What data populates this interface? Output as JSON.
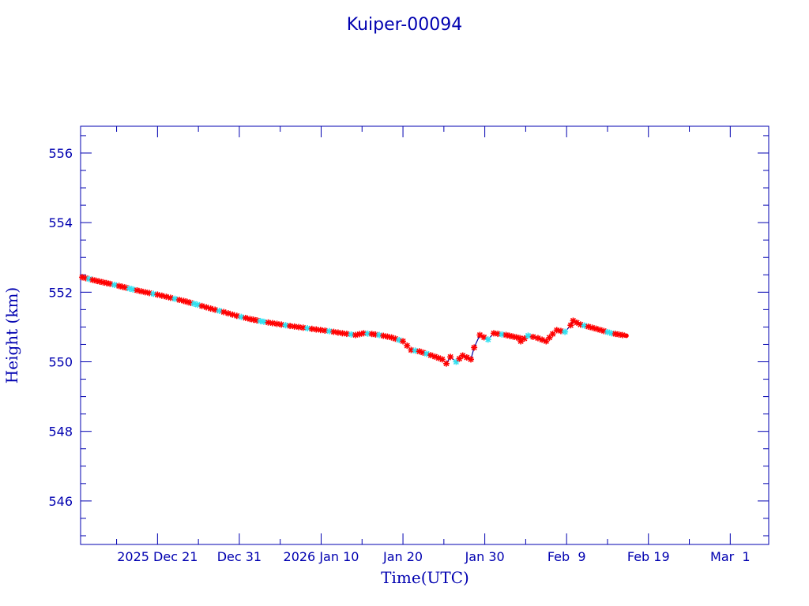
{
  "chart_data": {
    "type": "scatter",
    "title": "Kuiper-00094",
    "xlabel": "Time(UTC)",
    "ylabel": "Height (km)",
    "x_units": "days since 2025 Dec 21 00:00 UTC",
    "xlim": [
      -9.4,
      74.7
    ],
    "ylim": [
      544.75,
      556.77
    ],
    "yticks": [
      546,
      548,
      550,
      552,
      554,
      556
    ],
    "xticks": [
      {
        "day": 0,
        "label": "2025 Dec 21"
      },
      {
        "day": 10,
        "label": "Dec 31"
      },
      {
        "day": 20,
        "label": "2026 Jan 10"
      },
      {
        "day": 30,
        "label": "Jan 20"
      },
      {
        "day": 40,
        "label": "Jan 30"
      },
      {
        "day": 50,
        "label": "Feb  9"
      },
      {
        "day": 60,
        "label": "Feb 19"
      },
      {
        "day": 70,
        "label": "Mar  1"
      }
    ],
    "colors": {
      "axis": "#0000b0",
      "line": "#0000a0",
      "marker_main": "#ff0000",
      "marker_alt": "#33e0f0"
    },
    "series": [
      {
        "name": "Height",
        "points": [
          [
            -9.2,
            552.43
          ],
          [
            -7.5,
            552.33
          ],
          [
            -5.8,
            552.24
          ],
          [
            -4.7,
            552.18
          ],
          [
            -3.0,
            552.08
          ],
          [
            -1.5,
            552.0
          ],
          [
            0.0,
            551.93
          ],
          [
            1.6,
            551.84
          ],
          [
            3.2,
            551.75
          ],
          [
            4.9,
            551.64
          ],
          [
            6.5,
            551.53
          ],
          [
            8.1,
            551.43
          ],
          [
            9.7,
            551.32
          ],
          [
            11.3,
            551.23
          ],
          [
            13.0,
            551.15
          ],
          [
            14.6,
            551.09
          ],
          [
            16.2,
            551.03
          ],
          [
            17.8,
            550.98
          ],
          [
            19.4,
            550.93
          ],
          [
            21.0,
            550.88
          ],
          [
            22.6,
            550.82
          ],
          [
            24.2,
            550.77
          ],
          [
            25.2,
            550.82
          ],
          [
            26.2,
            550.8
          ],
          [
            27.1,
            550.77
          ],
          [
            28.6,
            550.7
          ],
          [
            30.0,
            550.59
          ],
          [
            31.0,
            550.34
          ],
          [
            32.0,
            550.3
          ],
          [
            32.9,
            550.23
          ],
          [
            33.9,
            550.15
          ],
          [
            34.8,
            550.07
          ],
          [
            35.3,
            549.95
          ],
          [
            35.8,
            550.14
          ],
          [
            36.5,
            550.0
          ],
          [
            37.3,
            550.18
          ],
          [
            38.3,
            550.07
          ],
          [
            38.7,
            550.41
          ],
          [
            39.4,
            550.77
          ],
          [
            40.4,
            550.64
          ],
          [
            41.1,
            550.82
          ],
          [
            42.6,
            550.77
          ],
          [
            44.3,
            550.68
          ],
          [
            44.4,
            550.59
          ],
          [
            45.3,
            550.75
          ],
          [
            46.5,
            550.68
          ],
          [
            47.5,
            550.59
          ],
          [
            48.3,
            550.8
          ],
          [
            48.8,
            550.91
          ],
          [
            49.8,
            550.86
          ],
          [
            50.5,
            551.05
          ],
          [
            50.8,
            551.18
          ],
          [
            51.7,
            551.07
          ],
          [
            53.6,
            550.95
          ],
          [
            55.5,
            550.82
          ],
          [
            57.3,
            550.75
          ]
        ]
      }
    ]
  }
}
